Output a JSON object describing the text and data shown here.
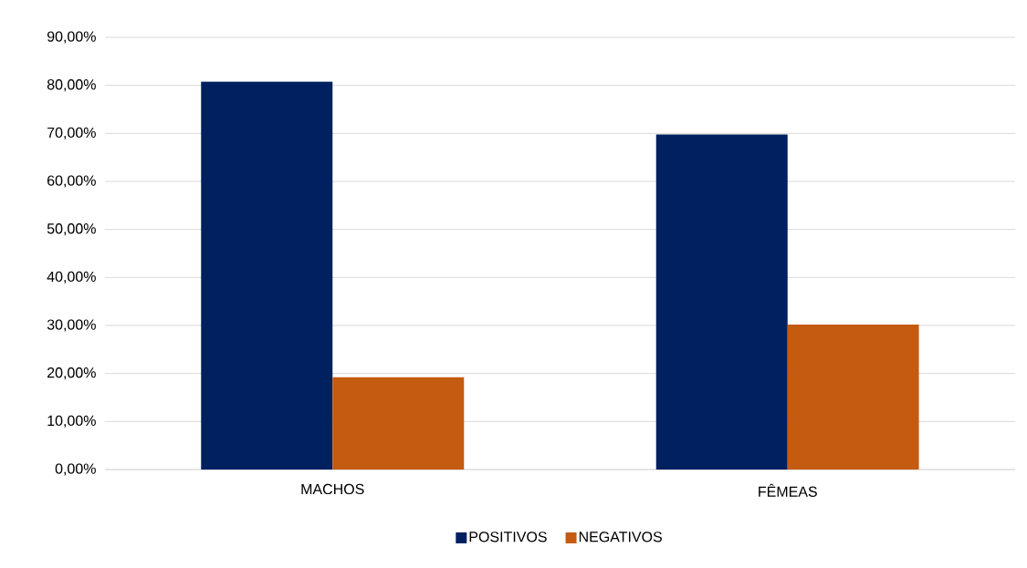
{
  "chart_data": {
    "type": "bar",
    "categories": [
      "MACHOS",
      "FÊMEAS"
    ],
    "series": [
      {
        "name": "POSITIVOS",
        "color": "#002060",
        "values": [
          80.8,
          69.8
        ]
      },
      {
        "name": "NEGATIVOS",
        "color": "#c55a11",
        "values": [
          19.2,
          30.2
        ]
      }
    ],
    "ylim": [
      0,
      90
    ],
    "yticks": [
      {
        "value": 0,
        "label": "0,00%"
      },
      {
        "value": 10,
        "label": "10,00%"
      },
      {
        "value": 20,
        "label": "20,00%"
      },
      {
        "value": 30,
        "label": "30,00%"
      },
      {
        "value": 40,
        "label": "40,00%"
      },
      {
        "value": 50,
        "label": "50,00%"
      },
      {
        "value": 60,
        "label": "60,00%"
      },
      {
        "value": 70,
        "label": "70,00%"
      },
      {
        "value": 80,
        "label": "80,00%"
      },
      {
        "value": 90,
        "label": "90,00%"
      }
    ],
    "grid": "y",
    "legend": "bottom"
  }
}
